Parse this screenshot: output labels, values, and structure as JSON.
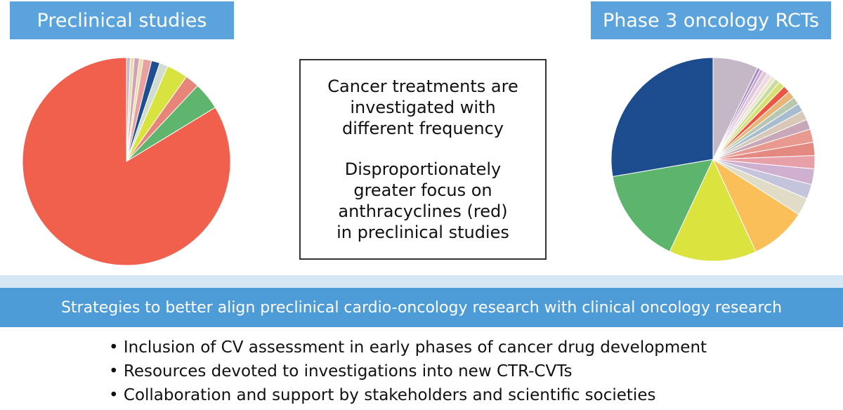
{
  "left_title": "Preclinical studies",
  "right_title": "Phase 3 oncology RCTs",
  "center_text": {
    "line1": "Cancer treatments are",
    "line2": "investigated with",
    "line3": "different frequency",
    "line4": "Disproportionately",
    "line5": "greater focus on",
    "line6": "anthracyclines (red)",
    "line7": "in preclinical studies"
  },
  "strategies_header": "Strategies to better align preclinical cardio-oncology research with clinical oncology research",
  "strategies": [
    "Inclusion of CV assessment in early phases of cancer drug development",
    "Resources devoted to investigations into new CTR-CVTs",
    "Collaboration and support by stakeholders and scientific societies"
  ],
  "chart_data": [
    {
      "type": "pie",
      "title": "Preclinical studies",
      "start_angle_deg": 0,
      "direction": "clockwise",
      "slices": [
        {
          "value": 0.6,
          "color": "#c8b6c8"
        },
        {
          "value": 0.6,
          "color": "#e6ddb0"
        },
        {
          "value": 0.8,
          "color": "#d5a0b4"
        },
        {
          "value": 0.6,
          "color": "#e8e0a8"
        },
        {
          "value": 1.3,
          "color": "#e8a0a0"
        },
        {
          "value": 1.3,
          "color": "#1f4f92"
        },
        {
          "value": 1.3,
          "color": "#cfdccf"
        },
        {
          "value": 3.3,
          "color": "#d9e33f"
        },
        {
          "value": 2.2,
          "color": "#e8857a"
        },
        {
          "value": 4.3,
          "color": "#5fb56d"
        },
        {
          "value": 83.7,
          "color": "#f0604d"
        }
      ]
    },
    {
      "type": "pie",
      "title": "Phase 3 oncology RCTs",
      "start_angle_deg": 0,
      "direction": "clockwise",
      "slices": [
        {
          "value": 7.2,
          "color": "#c4b7c6"
        },
        {
          "value": 0.5,
          "color": "#a88cc4"
        },
        {
          "value": 0.5,
          "color": "#c7a3d6"
        },
        {
          "value": 0.8,
          "color": "#e0c8d8"
        },
        {
          "value": 0.8,
          "color": "#f0d8e4"
        },
        {
          "value": 0.7,
          "color": "#e8e8c8"
        },
        {
          "value": 0.8,
          "color": "#c8dca0"
        },
        {
          "value": 1.0,
          "color": "#d8e070"
        },
        {
          "value": 1.1,
          "color": "#ec5544"
        },
        {
          "value": 1.2,
          "color": "#e8b478"
        },
        {
          "value": 1.2,
          "color": "#b8c8b0"
        },
        {
          "value": 1.3,
          "color": "#a8bcd0"
        },
        {
          "value": 1.5,
          "color": "#d8c8b8"
        },
        {
          "value": 1.6,
          "color": "#c8a8b8"
        },
        {
          "value": 2.1,
          "color": "#e89a90"
        },
        {
          "value": 2.1,
          "color": "#e48882"
        },
        {
          "value": 2.1,
          "color": "#e8a0a8"
        },
        {
          "value": 2.5,
          "color": "#d0b0d0"
        },
        {
          "value": 2.3,
          "color": "#c4c4dc"
        },
        {
          "value": 2.8,
          "color": "#e0dcc8"
        },
        {
          "value": 9.0,
          "color": "#fbbf5a"
        },
        {
          "value": 13.9,
          "color": "#dbe33f"
        },
        {
          "value": 15.3,
          "color": "#5db46d"
        },
        {
          "value": 27.7,
          "color": "#1c4c8e"
        }
      ]
    }
  ]
}
